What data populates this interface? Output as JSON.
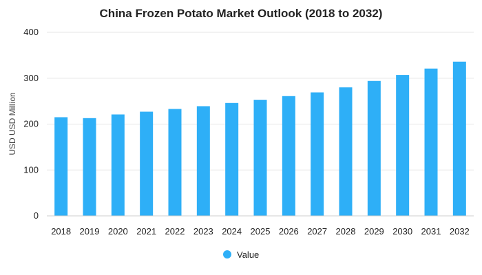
{
  "chart_data": {
    "type": "bar",
    "title": "China Frozen Potato Market Outlook (2018 to 2032)",
    "xlabel": "",
    "ylabel": "USD USD Million",
    "categories": [
      "2018",
      "2019",
      "2020",
      "2021",
      "2022",
      "2023",
      "2024",
      "2025",
      "2026",
      "2027",
      "2028",
      "2029",
      "2030",
      "2031",
      "2032"
    ],
    "series": [
      {
        "name": "Value",
        "values": [
          215,
          213,
          221,
          227,
          233,
          239,
          246,
          253,
          261,
          269,
          280,
          294,
          307,
          321,
          336
        ]
      }
    ],
    "ylim": [
      0,
      400
    ],
    "yticks": [
      0,
      100,
      200,
      300,
      400
    ],
    "grid": true,
    "legend": "bottom-center",
    "colors": {
      "bar": "#2eaff7"
    }
  }
}
